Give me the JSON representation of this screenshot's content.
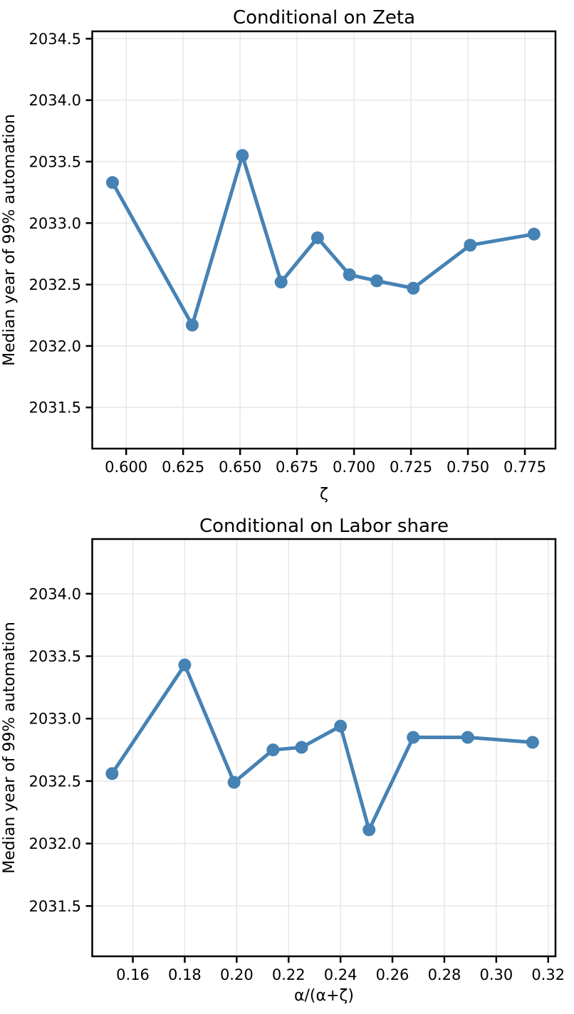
{
  "style": {
    "accent": "#4682B4",
    "grid_color": "#e5e5e5",
    "axis_color": "#000000",
    "background": "#ffffff"
  },
  "chart_data": [
    {
      "type": "line",
      "title": "Conditional on Zeta",
      "xlabel": "ζ",
      "ylabel": "Median year of 99% automation",
      "legend": null,
      "grid": true,
      "marker": "circle",
      "x": [
        0.594,
        0.629,
        0.651,
        0.668,
        0.684,
        0.698,
        0.71,
        0.726,
        0.751,
        0.779
      ],
      "y": [
        2033.33,
        2032.17,
        2033.55,
        2032.52,
        2032.88,
        2032.58,
        2032.53,
        2032.47,
        2032.82,
        2032.91
      ],
      "xticks": [
        0.6,
        0.625,
        0.65,
        0.675,
        0.7,
        0.725,
        0.75,
        0.775
      ],
      "xtick_labels": [
        "0.600",
        "0.625",
        "0.650",
        "0.675",
        "0.700",
        "0.725",
        "0.750",
        "0.775"
      ],
      "yticks": [
        2034.5,
        2034.0,
        2033.5,
        2033.0,
        2032.5,
        2032.0,
        2031.5
      ],
      "ytick_labels": [
        "2034.5",
        "2034.0",
        "2033.5",
        "2033.0",
        "2032.5",
        "2032.0",
        "2031.5"
      ],
      "xlim": [
        0.5851,
        0.78843
      ],
      "ylim": [
        2031.165,
        2034.56
      ]
    },
    {
      "type": "line",
      "title": "Conditional on Labor share",
      "xlabel": "α/(α+ζ)",
      "ylabel": "Median year of 99% automation",
      "legend": null,
      "grid": true,
      "marker": "circle",
      "x": [
        0.152,
        0.18,
        0.199,
        0.214,
        0.225,
        0.24,
        0.251,
        0.268,
        0.289,
        0.314
      ],
      "y": [
        2032.56,
        2033.43,
        2032.49,
        2032.75,
        2032.77,
        2032.94,
        2032.11,
        2032.85,
        2032.85,
        2032.81
      ],
      "xticks": [
        0.16,
        0.18,
        0.2,
        0.22,
        0.24,
        0.26,
        0.28,
        0.3,
        0.32
      ],
      "xtick_labels": [
        "0.16",
        "0.18",
        "0.20",
        "0.22",
        "0.24",
        "0.26",
        "0.28",
        "0.30",
        "0.32"
      ],
      "yticks": [
        2034.0,
        2033.5,
        2033.0,
        2032.5,
        2032.0,
        2031.5
      ],
      "ytick_labels": [
        "2034.0",
        "2033.5",
        "2033.0",
        "2032.5",
        "2032.0",
        "2031.5"
      ],
      "xlim": [
        0.14436,
        0.32281
      ],
      "ylim": [
        2031.097,
        2034.438
      ]
    }
  ]
}
